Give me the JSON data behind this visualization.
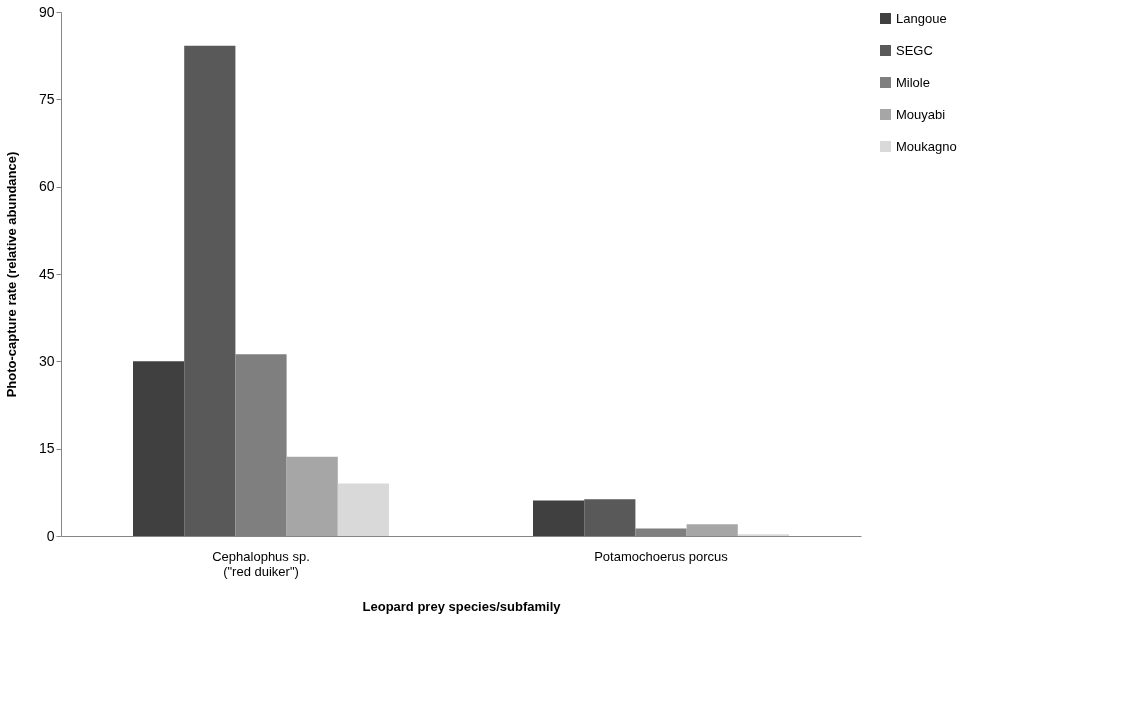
{
  "chart_data": {
    "type": "bar",
    "xlabel": "Leopard prey species/subfamily",
    "ylabel": "Photo-capture rate (relative abundance)",
    "categories": [
      "Cephalophus sp.\n(\"red duiker\")",
      "Potamochoerus porcus"
    ],
    "ylim": [
      0,
      90
    ],
    "yticks": [
      0,
      15,
      30,
      45,
      60,
      75,
      90
    ],
    "grid": false,
    "legend": "right",
    "series": [
      {
        "name": "Langoue",
        "color": "#404040",
        "values": [
          30.0,
          6.1
        ]
      },
      {
        "name": "SEGC",
        "color": "#595959",
        "values": [
          84.2,
          6.3
        ]
      },
      {
        "name": "Milole",
        "color": "#7f7f7f",
        "values": [
          31.2,
          1.3
        ]
      },
      {
        "name": "Mouyabi",
        "color": "#a6a6a6",
        "values": [
          13.6,
          2.0
        ]
      },
      {
        "name": "Moukagno",
        "color": "#d9d9d9",
        "values": [
          9.0,
          0.3
        ]
      }
    ]
  }
}
